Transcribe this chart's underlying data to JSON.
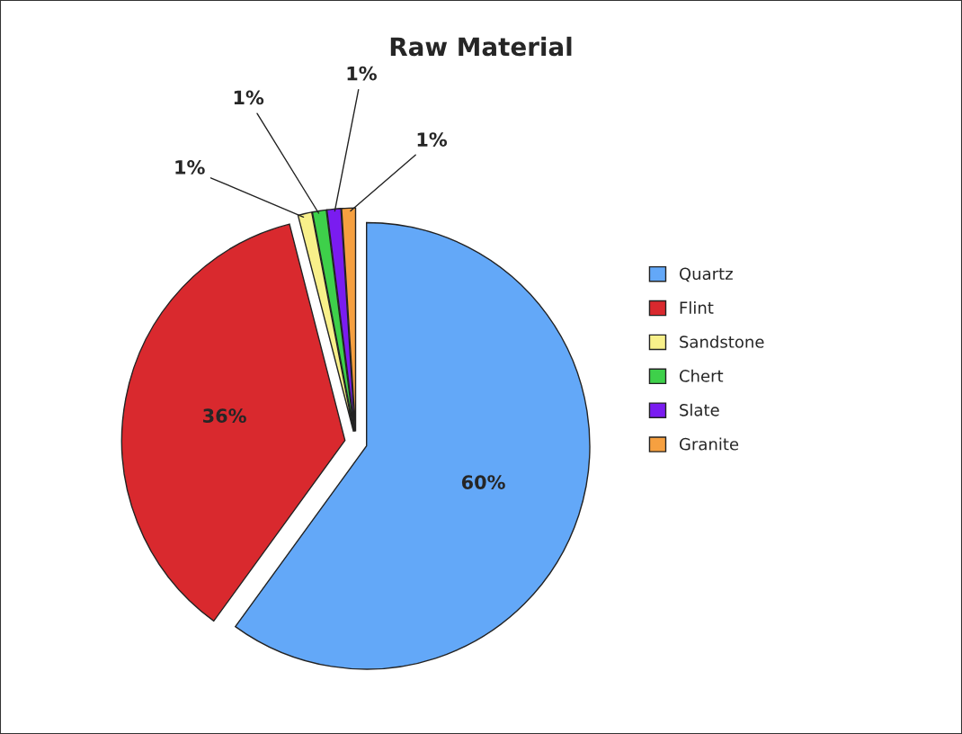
{
  "chart_data": {
    "type": "pie",
    "title": "Raw Material",
    "categories": [
      "Quartz",
      "Flint",
      "Sandstone",
      "Chert",
      "Slate",
      "Granite"
    ],
    "values": [
      60,
      36,
      1,
      1,
      1,
      1
    ],
    "colors": [
      "#63a8f8",
      "#d9292e",
      "#f8f08a",
      "#3ed04a",
      "#7a1cf0",
      "#f6a040"
    ],
    "value_labels": [
      "60%",
      "36%",
      "1%",
      "1%",
      "1%",
      "1%"
    ],
    "legend": "right"
  }
}
